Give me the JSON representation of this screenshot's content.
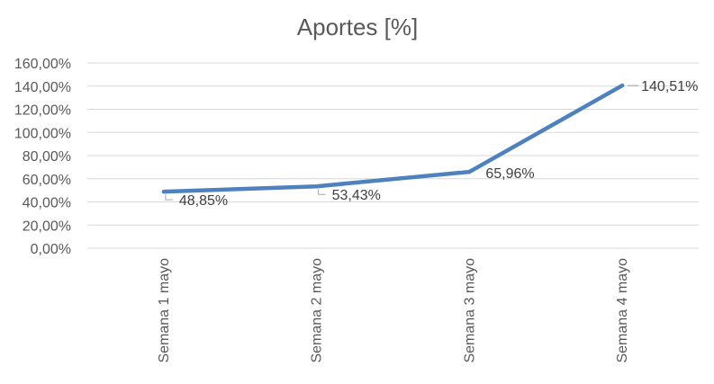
{
  "chart_data": {
    "type": "line",
    "title": "Aportes [%]",
    "categories": [
      "Semana 1 mayo",
      "Semana 2 mayo",
      "Semana 3 mayo",
      "Semana 4 mayo"
    ],
    "series": [
      {
        "values": [
          48.85,
          53.43,
          65.96,
          140.51
        ],
        "labels": [
          "48,85%",
          "53,43%",
          "65,96%",
          "140,51%"
        ],
        "color": "#4f81bd"
      }
    ],
    "ylim": [
      0,
      160
    ],
    "yticks": [
      "0,00%",
      "20,00%",
      "40,00%",
      "60,00%",
      "80,00%",
      "100,00%",
      "120,00%",
      "140,00%",
      "160,00%"
    ],
    "grid": true,
    "legend": "none"
  }
}
